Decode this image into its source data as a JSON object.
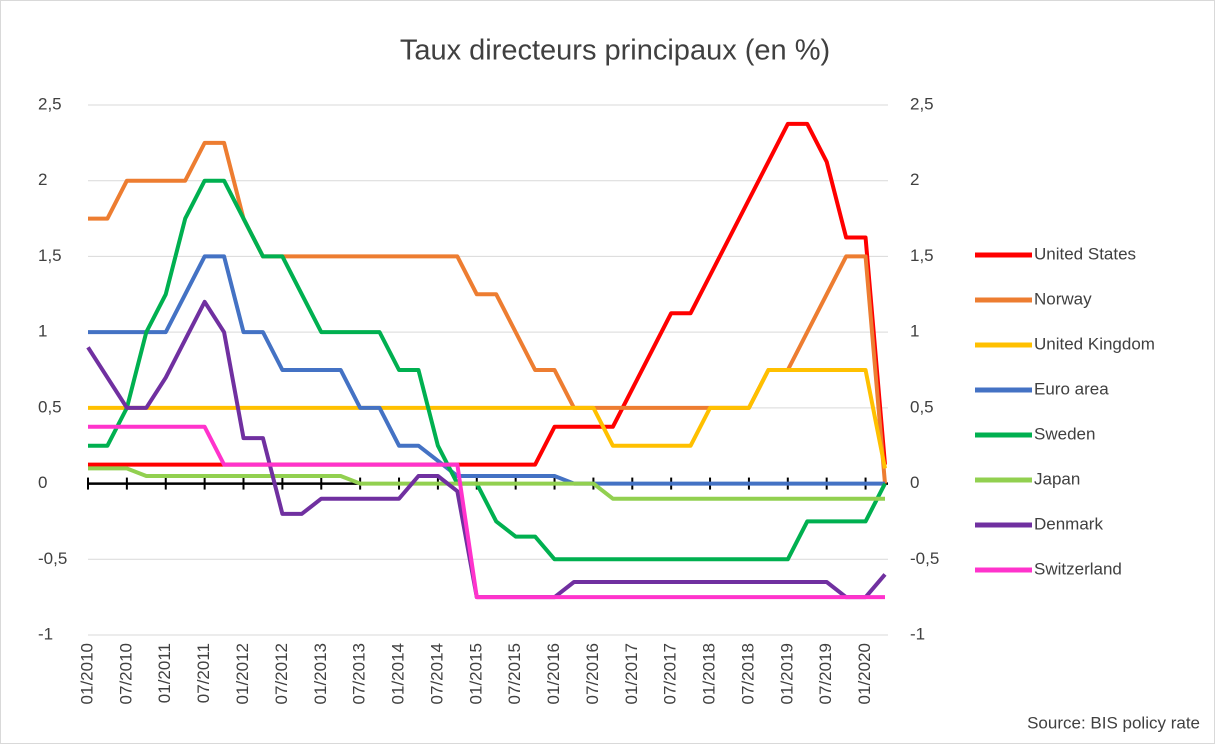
{
  "chart_data": {
    "type": "line",
    "title": "Taux directeurs principaux (en %)",
    "source": "Source: BIS policy rate",
    "categories": [
      "01/2010",
      null,
      "07/2010",
      null,
      "01/2011",
      null,
      "07/2011",
      null,
      "01/2012",
      null,
      "07/2012",
      null,
      "01/2013",
      null,
      "07/2013",
      null,
      "01/2014",
      null,
      "07/2014",
      null,
      "01/2015",
      null,
      "07/2015",
      null,
      "01/2016",
      null,
      "07/2016",
      null,
      "01/2017",
      null,
      "07/2017",
      null,
      "01/2018",
      null,
      "07/2018",
      null,
      "01/2019",
      null,
      "07/2019",
      null,
      "01/2020",
      null
    ],
    "series": [
      {
        "name": "United States",
        "color": "#ff0000",
        "values": [
          0.125,
          0.125,
          0.125,
          0.125,
          0.125,
          0.125,
          0.125,
          0.125,
          0.125,
          0.125,
          0.125,
          0.125,
          0.125,
          0.125,
          0.125,
          0.125,
          0.125,
          0.125,
          0.125,
          0.125,
          0.125,
          0.125,
          0.125,
          0.125,
          0.375,
          0.375,
          0.375,
          0.375,
          0.625,
          0.875,
          1.125,
          1.125,
          1.375,
          1.625,
          1.875,
          2.125,
          2.375,
          2.375,
          2.125,
          1.625,
          1.625,
          0.125
        ]
      },
      {
        "name": "Norway",
        "color": "#ed7d31",
        "values": [
          1.75,
          1.75,
          2.0,
          2.0,
          2.0,
          2.0,
          2.25,
          2.25,
          1.75,
          1.5,
          1.5,
          1.5,
          1.5,
          1.5,
          1.5,
          1.5,
          1.5,
          1.5,
          1.5,
          1.5,
          1.25,
          1.25,
          1.0,
          0.75,
          0.75,
          0.5,
          0.5,
          0.5,
          0.5,
          0.5,
          0.5,
          0.5,
          0.5,
          0.5,
          0.5,
          0.75,
          0.75,
          1.0,
          1.25,
          1.5,
          1.5,
          0
        ]
      },
      {
        "name": "United Kingdom",
        "color": "#ffc000",
        "values": [
          0.5,
          0.5,
          0.5,
          0.5,
          0.5,
          0.5,
          0.5,
          0.5,
          0.5,
          0.5,
          0.5,
          0.5,
          0.5,
          0.5,
          0.5,
          0.5,
          0.5,
          0.5,
          0.5,
          0.5,
          0.5,
          0.5,
          0.5,
          0.5,
          0.5,
          0.5,
          0.5,
          0.25,
          0.25,
          0.25,
          0.25,
          0.25,
          0.5,
          0.5,
          0.5,
          0.75,
          0.75,
          0.75,
          0.75,
          0.75,
          0.75,
          0.1
        ]
      },
      {
        "name": "Euro area",
        "color": "#4472c4",
        "values": [
          1.0,
          1.0,
          1.0,
          1.0,
          1.0,
          1.25,
          1.5,
          1.5,
          1.0,
          1.0,
          0.75,
          0.75,
          0.75,
          0.75,
          0.5,
          0.5,
          0.25,
          0.25,
          0.15,
          0.05,
          0.05,
          0.05,
          0.05,
          0.05,
          0.05,
          0,
          0,
          0,
          0,
          0,
          0,
          0,
          0,
          0,
          0,
          0,
          0,
          0,
          0,
          0,
          0,
          0
        ]
      },
      {
        "name": "Sweden",
        "color": "#00b050",
        "values": [
          0.25,
          0.25,
          0.5,
          1.0,
          1.25,
          1.75,
          2.0,
          2.0,
          1.75,
          1.5,
          1.5,
          1.25,
          1.0,
          1.0,
          1.0,
          1.0,
          0.75,
          0.75,
          0.25,
          0,
          0,
          -0.25,
          -0.35,
          -0.35,
          -0.5,
          -0.5,
          -0.5,
          -0.5,
          -0.5,
          -0.5,
          -0.5,
          -0.5,
          -0.5,
          -0.5,
          -0.5,
          -0.5,
          -0.5,
          -0.25,
          -0.25,
          -0.25,
          -0.25,
          0
        ]
      },
      {
        "name": "Japan",
        "color": "#92d050",
        "values": [
          0.1,
          0.1,
          0.1,
          0.05,
          0.05,
          0.05,
          0.05,
          0.05,
          0.05,
          0.05,
          0.05,
          0.05,
          0.05,
          0.05,
          0,
          0,
          0,
          0,
          0,
          0,
          0,
          0,
          0,
          0,
          0,
          0,
          0,
          -0.1,
          -0.1,
          -0.1,
          -0.1,
          -0.1,
          -0.1,
          -0.1,
          -0.1,
          -0.1,
          -0.1,
          -0.1,
          -0.1,
          -0.1,
          -0.1,
          -0.1
        ]
      },
      {
        "name": "Denmark",
        "color": "#7030a0",
        "values": [
          0.9,
          0.7,
          0.5,
          0.5,
          0.7,
          0.95,
          1.2,
          1.0,
          0.3,
          0.3,
          -0.2,
          -0.2,
          -0.1,
          -0.1,
          -0.1,
          -0.1,
          -0.1,
          0.05,
          0.05,
          -0.05,
          -0.75,
          -0.75,
          -0.75,
          -0.75,
          -0.75,
          -0.65,
          -0.65,
          -0.65,
          -0.65,
          -0.65,
          -0.65,
          -0.65,
          -0.65,
          -0.65,
          -0.65,
          -0.65,
          -0.65,
          -0.65,
          -0.65,
          -0.75,
          -0.75,
          -0.6
        ]
      },
      {
        "name": "Switzerland",
        "color": "#ff33cc",
        "values": [
          0.375,
          0.375,
          0.375,
          0.375,
          0.375,
          0.375,
          0.375,
          0.125,
          0.125,
          0.125,
          0.125,
          0.125,
          0.125,
          0.125,
          0.125,
          0.125,
          0.125,
          0.125,
          0.125,
          0.125,
          -0.75,
          -0.75,
          -0.75,
          -0.75,
          -0.75,
          -0.75,
          -0.75,
          -0.75,
          -0.75,
          -0.75,
          -0.75,
          -0.75,
          -0.75,
          -0.75,
          -0.75,
          -0.75,
          -0.75,
          -0.75,
          -0.75,
          -0.75,
          -0.75,
          -0.75
        ]
      }
    ],
    "ylim": [
      -1,
      2.5
    ],
    "yticks": [
      -1,
      {
        "value": -0.5,
        "label": "-0,5"
      },
      0,
      {
        "value": 0.5,
        "label": "0,5"
      },
      1,
      {
        "value": 1.5,
        "label": "1,5"
      },
      2,
      {
        "value": 2.5,
        "label": "2,5"
      }
    ],
    "y2lim": [
      -1,
      2.5
    ],
    "y2ticks": [
      -1,
      {
        "value": -0.5,
        "label": "-0,5"
      },
      0,
      {
        "value": 0.5,
        "label": "0,5"
      },
      1,
      {
        "value": 1.5,
        "label": "1,5"
      },
      2,
      {
        "value": 2.5,
        "label": "2,5"
      }
    ],
    "grid": true,
    "legend": "right"
  }
}
